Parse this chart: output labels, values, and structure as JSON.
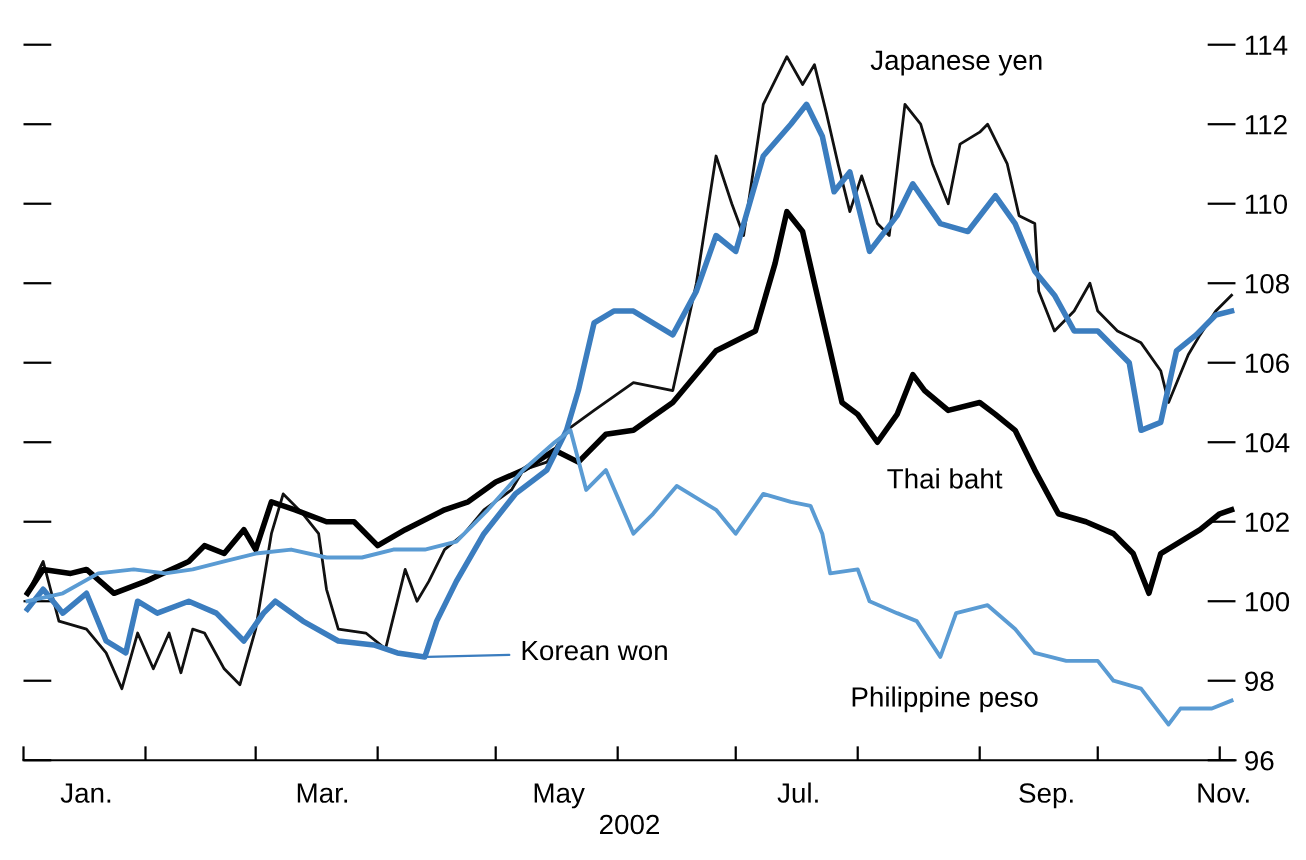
{
  "chart_data": {
    "type": "line",
    "xlabel": "2002",
    "xlim": [
      "2002-01-01",
      "2002-11-05"
    ],
    "ylim": [
      96,
      114
    ],
    "xticks": [
      {
        "value": "2002-01-01",
        "label": null
      },
      {
        "value": "2002-01-17",
        "label": "Jan."
      },
      {
        "value": "2002-02-01",
        "label": null
      },
      {
        "value": "2002-03-01",
        "label": null
      },
      {
        "value": "2002-03-18",
        "label": "Mar."
      },
      {
        "value": "2002-04-01",
        "label": null
      },
      {
        "value": "2002-05-01",
        "label": null
      },
      {
        "value": "2002-05-17",
        "label": "May"
      },
      {
        "value": "2002-06-01",
        "label": null
      },
      {
        "value": "2002-07-01",
        "label": null
      },
      {
        "value": "2002-07-17",
        "label": "Jul."
      },
      {
        "value": "2002-08-01",
        "label": null
      },
      {
        "value": "2002-09-01",
        "label": null
      },
      {
        "value": "2002-09-18",
        "label": "Sep."
      },
      {
        "value": "2002-10-01",
        "label": null
      },
      {
        "value": "2002-11-01",
        "label": null
      },
      {
        "value": "2002-11-02",
        "label": "Nov."
      }
    ],
    "yticks": [
      96,
      98,
      100,
      102,
      104,
      106,
      108,
      110,
      112,
      114
    ],
    "grid": false,
    "marker": "none",
    "line_style": "solid",
    "series": [
      {
        "name": "Japanese yen",
        "color": "#111111",
        "x": [
          "2002-01-02",
          "2002-01-06",
          "2002-01-10",
          "2002-01-17",
          "2002-01-22",
          "2002-01-26",
          "2002-01-30",
          "2002-02-03",
          "2002-02-07",
          "2002-02-10",
          "2002-02-13",
          "2002-02-16",
          "2002-02-21",
          "2002-02-25",
          "2002-03-01",
          "2002-03-05",
          "2002-03-08",
          "2002-03-13",
          "2002-03-17",
          "2002-03-19",
          "2002-03-22",
          "2002-03-29",
          "2002-04-03",
          "2002-04-08",
          "2002-04-11",
          "2002-04-14",
          "2002-04-18",
          "2002-04-23",
          "2002-04-28",
          "2002-05-05",
          "2002-05-08",
          "2002-05-14",
          "2002-05-19",
          "2002-05-26",
          "2002-06-05",
          "2002-06-15",
          "2002-06-21",
          "2002-06-26",
          "2002-06-30",
          "2002-07-03",
          "2002-07-08",
          "2002-07-14",
          "2002-07-18",
          "2002-07-21",
          "2002-07-24",
          "2002-07-27",
          "2002-07-30",
          "2002-08-02",
          "2002-08-06",
          "2002-08-09",
          "2002-08-13",
          "2002-08-17",
          "2002-08-20",
          "2002-08-24",
          "2002-08-27",
          "2002-09-01",
          "2002-09-03",
          "2002-09-08",
          "2002-09-11",
          "2002-09-15",
          "2002-09-16",
          "2002-09-20",
          "2002-09-25",
          "2002-09-29",
          "2002-10-01",
          "2002-10-06",
          "2002-10-12",
          "2002-10-17",
          "2002-10-19",
          "2002-10-24",
          "2002-10-27",
          "2002-10-31",
          "2002-11-04"
        ],
        "values": [
          100.2,
          101,
          99.5,
          99.3,
          98.7,
          97.8,
          99.2,
          98.3,
          99.2,
          98.2,
          99.3,
          99.2,
          98.3,
          97.9,
          99.3,
          101.7,
          102.7,
          102.2,
          101.7,
          100.3,
          99.3,
          99.2,
          98.8,
          100.8,
          100,
          100.5,
          101.3,
          101.7,
          102.3,
          102.8,
          103.3,
          103.5,
          104.3,
          104.8,
          105.5,
          105.3,
          108,
          111.2,
          110,
          109.2,
          112.5,
          113.7,
          113,
          113.5,
          112.3,
          111,
          109.8,
          110.7,
          109.5,
          109.2,
          112.5,
          112,
          111,
          110,
          111.5,
          111.8,
          112,
          111,
          109.7,
          109.5,
          107.8,
          106.8,
          107.3,
          108,
          107.3,
          106.8,
          106.5,
          105.8,
          105,
          106.2,
          106.7,
          107.3,
          107.7
        ]
      },
      {
        "name": "Thai baht",
        "color": "#000000",
        "x": [
          "2002-01-02",
          "2002-01-06",
          "2002-01-13",
          "2002-01-17",
          "2002-01-24",
          "2002-02-01",
          "2002-02-12",
          "2002-02-16",
          "2002-02-21",
          "2002-02-26",
          "2002-03-01",
          "2002-03-05",
          "2002-03-11",
          "2002-03-19",
          "2002-03-26",
          "2002-04-01",
          "2002-04-08",
          "2002-04-18",
          "2002-04-24",
          "2002-05-01",
          "2002-05-08",
          "2002-05-16",
          "2002-05-22",
          "2002-05-29",
          "2002-06-05",
          "2002-06-15",
          "2002-06-26",
          "2002-07-06",
          "2002-07-11",
          "2002-07-14",
          "2002-07-18",
          "2002-07-21",
          "2002-07-25",
          "2002-07-28",
          "2002-08-01",
          "2002-08-06",
          "2002-08-11",
          "2002-08-15",
          "2002-08-18",
          "2002-08-24",
          "2002-09-01",
          "2002-09-05",
          "2002-09-10",
          "2002-09-15",
          "2002-09-21",
          "2002-09-28",
          "2002-10-05",
          "2002-10-10",
          "2002-10-14",
          "2002-10-17",
          "2002-10-22",
          "2002-10-27",
          "2002-11-01",
          "2002-11-04"
        ],
        "values": [
          100.2,
          100.8,
          100.7,
          100.8,
          100.2,
          100.5,
          101,
          101.4,
          101.2,
          101.8,
          101.3,
          102.5,
          102.3,
          102,
          102,
          101.4,
          101.8,
          102.3,
          102.5,
          103,
          103.3,
          103.8,
          103.5,
          104.2,
          104.3,
          105,
          106.3,
          106.8,
          108.5,
          109.8,
          109.3,
          108,
          106.3,
          105,
          104.7,
          104,
          104.7,
          105.7,
          105.3,
          104.8,
          105,
          104.7,
          104.3,
          103.3,
          102.2,
          102,
          101.7,
          101.2,
          100.2,
          101.2,
          101.5,
          101.8,
          102.2,
          102.3
        ]
      },
      {
        "name": "Korean won",
        "color": "#3b7dbf",
        "x": [
          "2002-01-02",
          "2002-01-06",
          "2002-01-11",
          "2002-01-17",
          "2002-01-22",
          "2002-01-27",
          "2002-01-30",
          "2002-02-04",
          "2002-02-12",
          "2002-02-19",
          "2002-02-26",
          "2002-03-03",
          "2002-03-06",
          "2002-03-13",
          "2002-03-22",
          "2002-03-31",
          "2002-04-06",
          "2002-04-13",
          "2002-04-16",
          "2002-04-21",
          "2002-04-28",
          "2002-05-06",
          "2002-05-14",
          "2002-05-19",
          "2002-05-22",
          "2002-05-26",
          "2002-05-31",
          "2002-06-05",
          "2002-06-15",
          "2002-06-21",
          "2002-06-26",
          "2002-07-01",
          "2002-07-08",
          "2002-07-15",
          "2002-07-19",
          "2002-07-23",
          "2002-07-26",
          "2002-07-30",
          "2002-08-04",
          "2002-08-11",
          "2002-08-15",
          "2002-08-22",
          "2002-08-29",
          "2002-09-05",
          "2002-09-10",
          "2002-09-15",
          "2002-09-20",
          "2002-09-25",
          "2002-10-01",
          "2002-10-09",
          "2002-10-12",
          "2002-10-17",
          "2002-10-21",
          "2002-10-26",
          "2002-10-31",
          "2002-11-04"
        ],
        "values": [
          99.8,
          100.3,
          99.7,
          100.2,
          99,
          98.7,
          100,
          99.7,
          100,
          99.7,
          99,
          99.7,
          100,
          99.5,
          99,
          98.9,
          98.7,
          98.6,
          99.5,
          100.5,
          101.7,
          102.7,
          103.3,
          104.3,
          105.3,
          107,
          107.3,
          107.3,
          106.7,
          107.8,
          109.2,
          108.8,
          111.2,
          112,
          112.5,
          111.7,
          110.3,
          110.8,
          108.8,
          109.7,
          110.5,
          109.5,
          109.3,
          110.2,
          109.5,
          108.3,
          107.7,
          106.8,
          106.8,
          106,
          104.3,
          104.5,
          106.3,
          106.7,
          107.2,
          107.3
        ]
      },
      {
        "name": "Philippine peso",
        "color": "#5a9bd3",
        "x": [
          "2002-01-02",
          "2002-01-11",
          "2002-01-20",
          "2002-01-29",
          "2002-02-06",
          "2002-02-13",
          "2002-02-21",
          "2002-03-01",
          "2002-03-10",
          "2002-03-19",
          "2002-03-28",
          "2002-04-05",
          "2002-04-13",
          "2002-04-21",
          "2002-04-29",
          "2002-05-08",
          "2002-05-16",
          "2002-05-20",
          "2002-05-24",
          "2002-05-29",
          "2002-06-05",
          "2002-06-10",
          "2002-06-16",
          "2002-06-26",
          "2002-07-01",
          "2002-07-08",
          "2002-07-15",
          "2002-07-20",
          "2002-07-23",
          "2002-07-25",
          "2002-08-01",
          "2002-08-04",
          "2002-08-11",
          "2002-08-16",
          "2002-08-22",
          "2002-08-26",
          "2002-09-03",
          "2002-09-10",
          "2002-09-15",
          "2002-09-23",
          "2002-10-01",
          "2002-10-05",
          "2002-10-12",
          "2002-10-19",
          "2002-10-22",
          "2002-10-30",
          "2002-11-04"
        ],
        "values": [
          100,
          100.2,
          100.7,
          100.8,
          100.7,
          100.8,
          101,
          101.2,
          101.3,
          101.1,
          101.1,
          101.3,
          101.3,
          101.5,
          102.3,
          103.3,
          104,
          104.3,
          102.8,
          103.3,
          101.7,
          102.2,
          102.9,
          102.3,
          101.7,
          102.7,
          102.5,
          102.4,
          101.7,
          100.7,
          100.8,
          100,
          99.7,
          99.5,
          98.6,
          99.7,
          99.9,
          99.3,
          98.7,
          98.5,
          98.5,
          98,
          97.8,
          96.9,
          97.3,
          97.3,
          97.5
        ]
      }
    ]
  }
}
